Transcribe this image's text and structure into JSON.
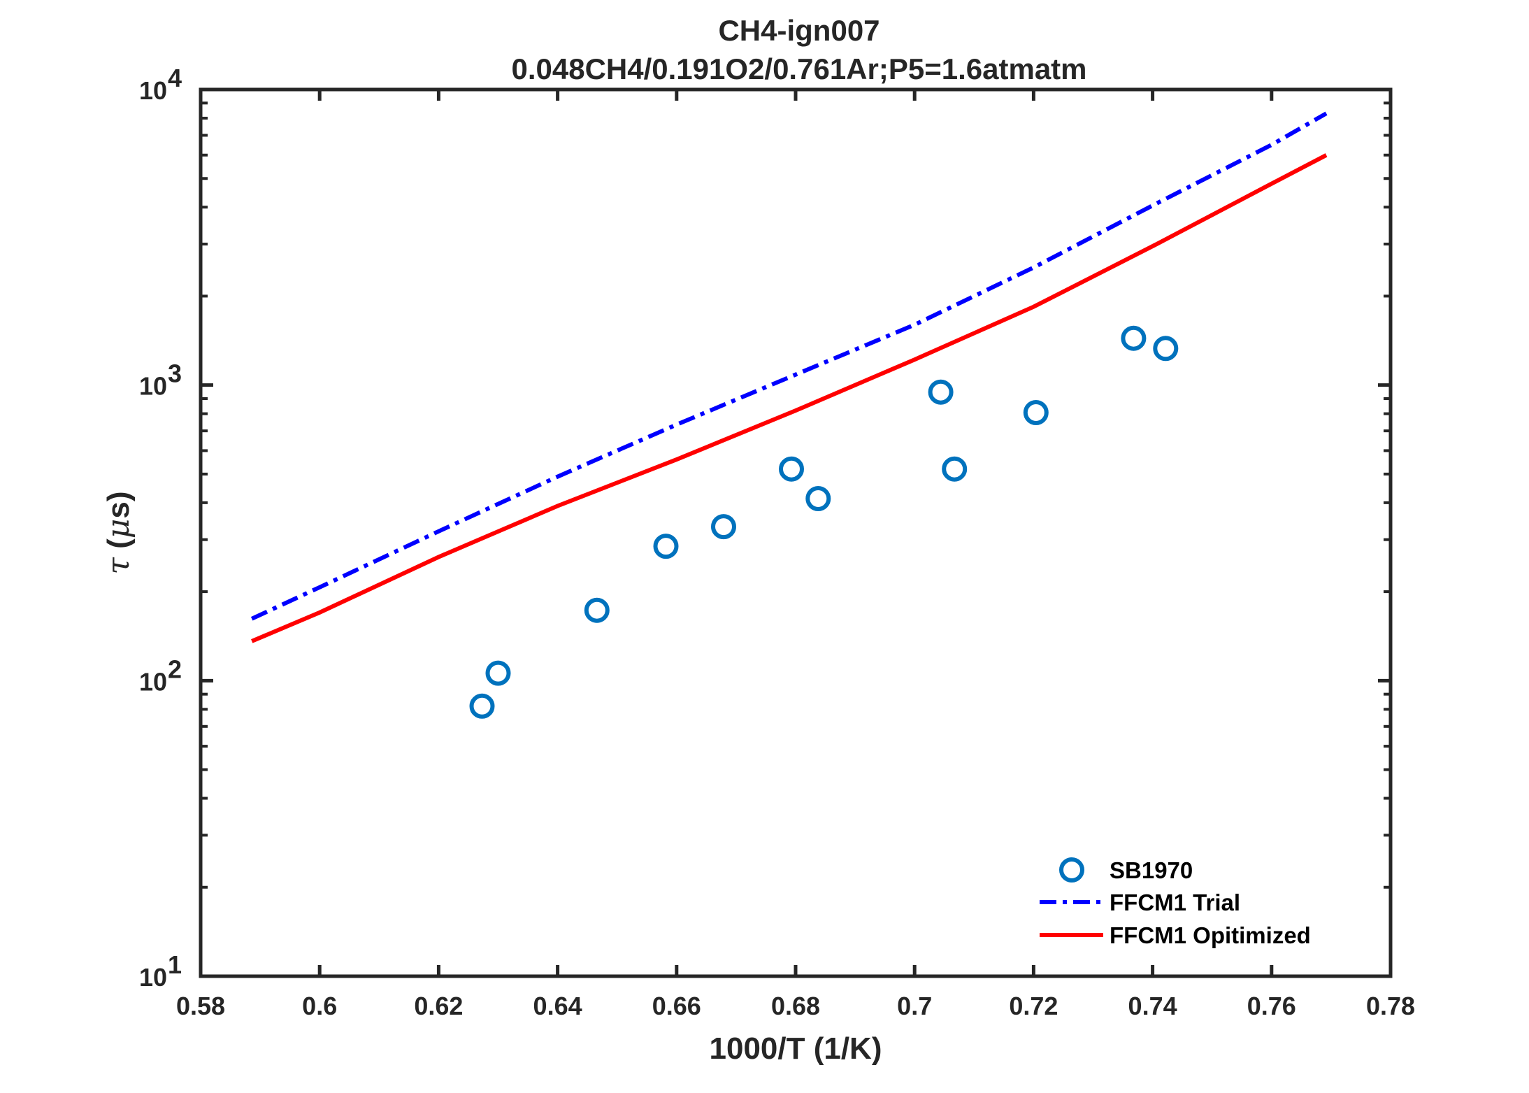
{
  "chart_data": {
    "type": "scatter",
    "title": "CH4-ign007",
    "subtitle": "0.048CH4/0.191O2/0.761Ar;P5=1.6atmatm",
    "xlabel": "1000/T (1/K)",
    "ylabel_symbol": "τ",
    "ylabel_open": " (",
    "ylabel_mu": "μ",
    "ylabel_unit": "s)",
    "xlim": [
      0.58,
      0.78
    ],
    "ylim": [
      10,
      10000
    ],
    "yscale": "log",
    "xticks": [
      0.58,
      0.6,
      0.62,
      0.64,
      0.66,
      0.68,
      0.7,
      0.72,
      0.74,
      0.76,
      0.78
    ],
    "xtick_labels": [
      "0.58",
      "0.6",
      "0.62",
      "0.64",
      "0.66",
      "0.68",
      "0.7",
      "0.72",
      "0.74",
      "0.76",
      "0.78"
    ],
    "yticks": [
      {
        "value": 10,
        "base": "10",
        "exp": "1"
      },
      {
        "value": 100,
        "base": "10",
        "exp": "2"
      },
      {
        "value": 1000,
        "base": "10",
        "exp": "3"
      },
      {
        "value": 10000,
        "base": "10",
        "exp": "4"
      }
    ],
    "legend_position": "bottom-right",
    "series": [
      {
        "name": "SB1970",
        "kind": "marker",
        "color": "#0072BD",
        "points": [
          {
            "x": 0.6273,
            "y": 82
          },
          {
            "x": 0.63,
            "y": 106
          },
          {
            "x": 0.6466,
            "y": 173
          },
          {
            "x": 0.6582,
            "y": 285
          },
          {
            "x": 0.6679,
            "y": 332
          },
          {
            "x": 0.6793,
            "y": 520
          },
          {
            "x": 0.6838,
            "y": 413
          },
          {
            "x": 0.7044,
            "y": 947
          },
          {
            "x": 0.7067,
            "y": 520
          },
          {
            "x": 0.7204,
            "y": 807
          },
          {
            "x": 0.7368,
            "y": 1440
          },
          {
            "x": 0.7422,
            "y": 1330
          }
        ]
      },
      {
        "name": "FFCM1 Trial",
        "kind": "dashdot",
        "color": "#0000FF",
        "points": [
          {
            "x": 0.5886,
            "y": 162
          },
          {
            "x": 0.6,
            "y": 207
          },
          {
            "x": 0.62,
            "y": 320
          },
          {
            "x": 0.64,
            "y": 490
          },
          {
            "x": 0.66,
            "y": 735
          },
          {
            "x": 0.68,
            "y": 1085
          },
          {
            "x": 0.7,
            "y": 1600
          },
          {
            "x": 0.72,
            "y": 2500
          },
          {
            "x": 0.74,
            "y": 4050
          },
          {
            "x": 0.76,
            "y": 6500
          },
          {
            "x": 0.7692,
            "y": 8300
          }
        ]
      },
      {
        "name": "FFCM1 Opitimized",
        "kind": "solid",
        "color": "#FF0000",
        "points": [
          {
            "x": 0.5886,
            "y": 136
          },
          {
            "x": 0.6,
            "y": 170
          },
          {
            "x": 0.62,
            "y": 262
          },
          {
            "x": 0.64,
            "y": 390
          },
          {
            "x": 0.66,
            "y": 560
          },
          {
            "x": 0.68,
            "y": 820
          },
          {
            "x": 0.7,
            "y": 1220
          },
          {
            "x": 0.72,
            "y": 1840
          },
          {
            "x": 0.74,
            "y": 2950
          },
          {
            "x": 0.76,
            "y": 4800
          },
          {
            "x": 0.7692,
            "y": 6000
          }
        ]
      }
    ]
  }
}
